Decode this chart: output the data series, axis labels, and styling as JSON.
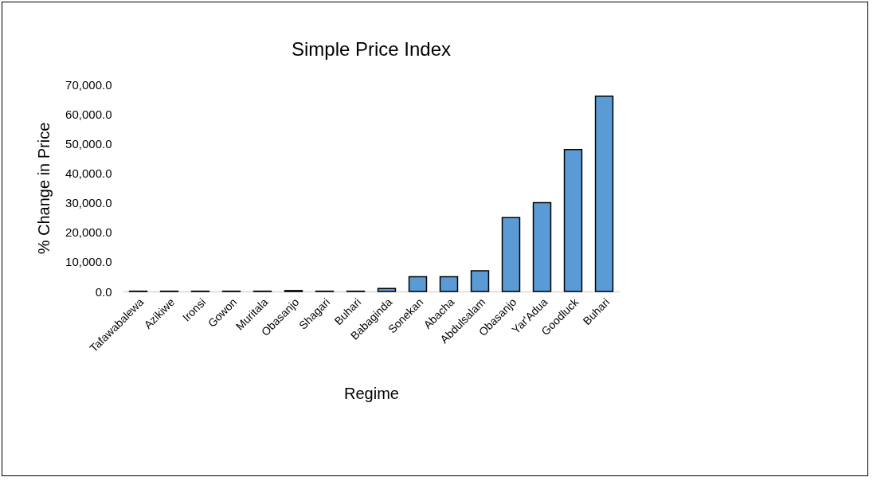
{
  "chart_data": {
    "type": "bar",
    "title": "Simple Price Index",
    "xlabel": "Regime",
    "ylabel": "% Change in Price",
    "categories": [
      "Tafawabalewa",
      "Azikiwe",
      "Ironsi",
      "Gowon",
      "Muritala",
      "Obasanjo",
      "Shagari",
      "Buhari",
      "Babaginda",
      "Sonekan",
      "Abacha",
      "Abdulsalam",
      "Obasanjo",
      "Yar'Adua",
      "Goodluck",
      "Buhari"
    ],
    "values": [
      100,
      100,
      100,
      100,
      100,
      300,
      100,
      100,
      1000,
      5000,
      5000,
      7000,
      25000,
      30000,
      48000,
      66000
    ],
    "color": "#5b9bd5",
    "ylim": [
      0,
      70000
    ],
    "yticks": [
      {
        "value": 0,
        "label": "0.0"
      },
      {
        "value": 10000,
        "label": "10,000.0"
      },
      {
        "value": 20000,
        "label": "20,000.0"
      },
      {
        "value": 30000,
        "label": "30,000.0"
      },
      {
        "value": 40000,
        "label": "40,000.0"
      },
      {
        "value": 50000,
        "label": "50,000.0"
      },
      {
        "value": 60000,
        "label": "60,000.0"
      },
      {
        "value": 70000,
        "label": "70,000.0"
      }
    ],
    "grid": false,
    "legend": false
  }
}
